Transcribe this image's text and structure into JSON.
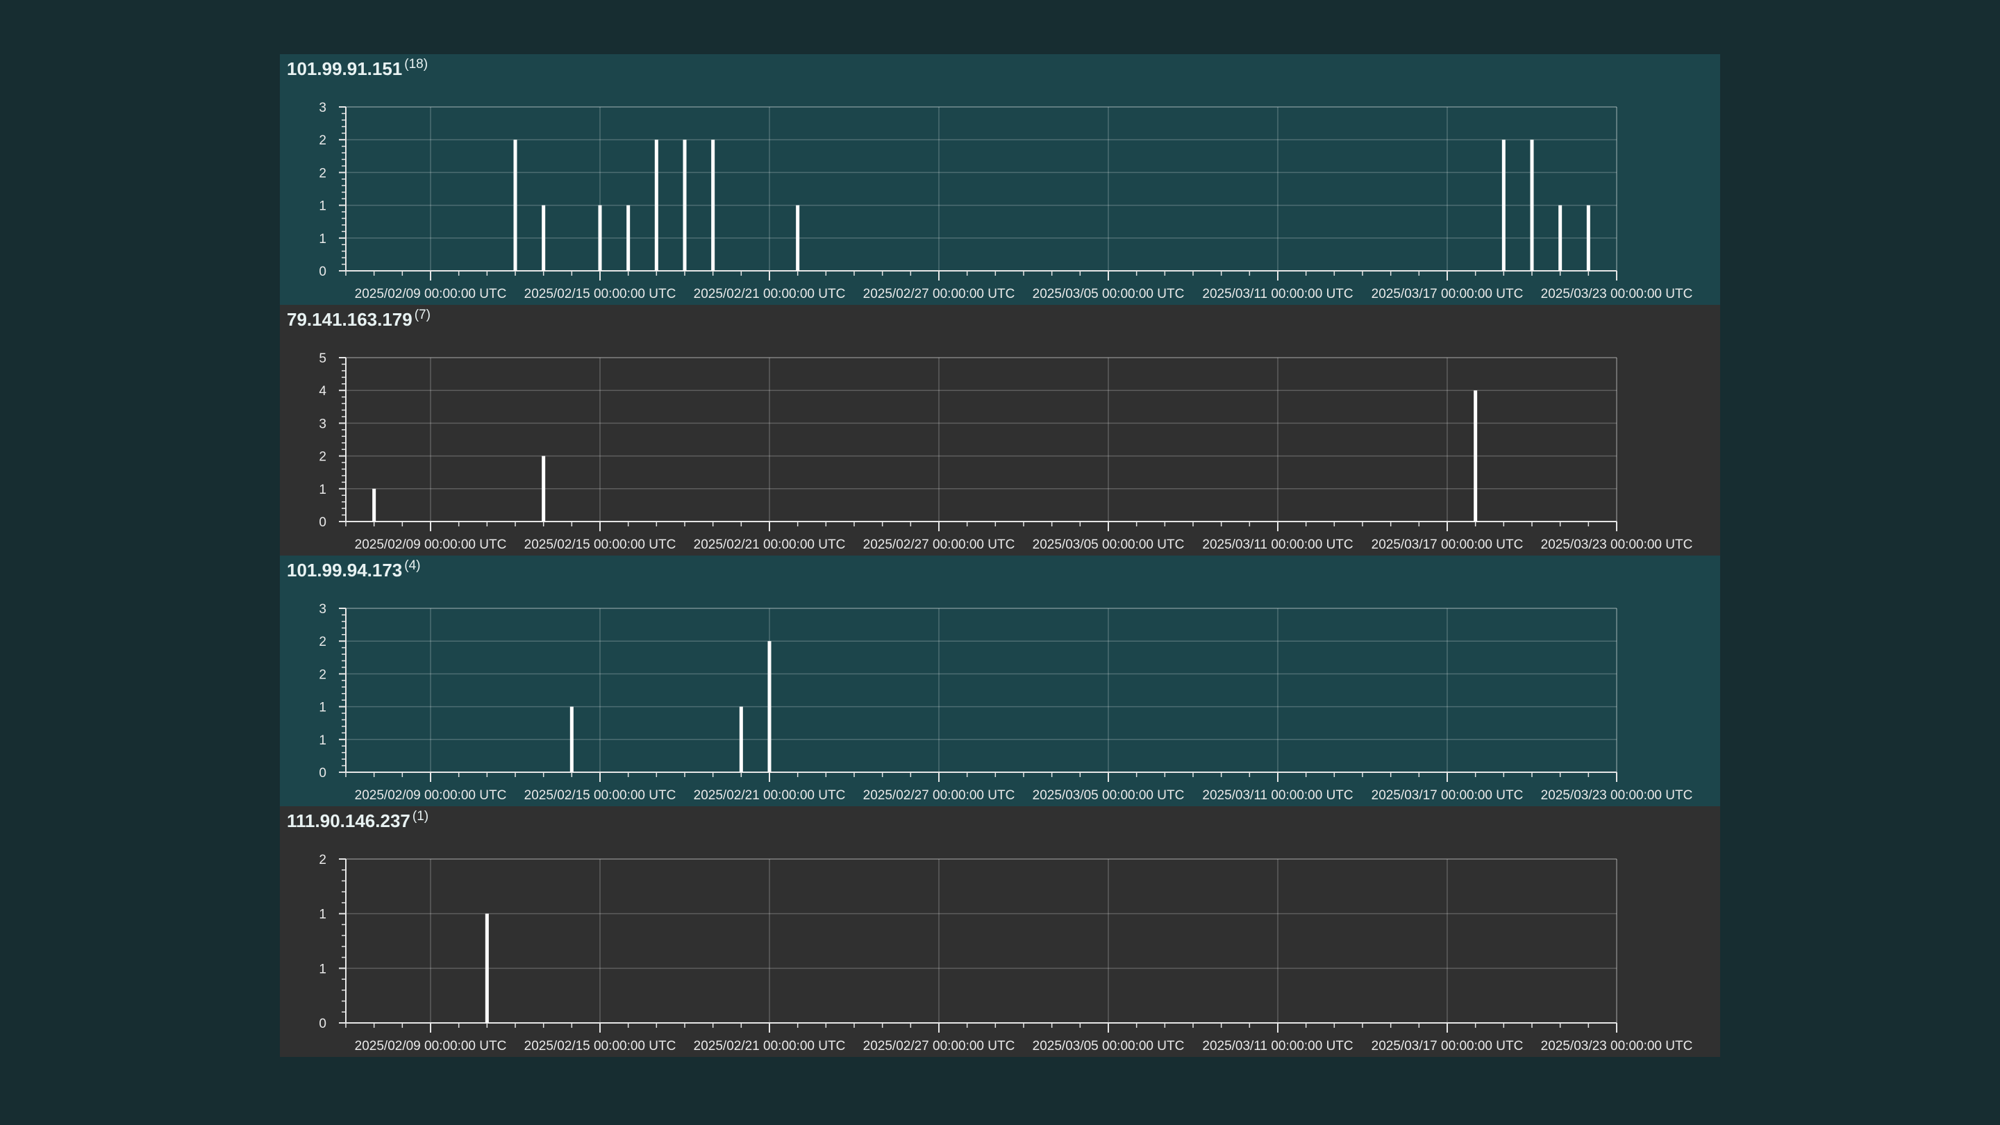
{
  "x_tick_labels": [
    "2025/02/09 00:00:00 UTC",
    "2025/02/15 00:00:00 UTC",
    "2025/02/21 00:00:00 UTC",
    "2025/02/27 00:00:00 UTC",
    "2025/03/05 00:00:00 UTC",
    "2025/03/11 00:00:00 UTC",
    "2025/03/17 00:00:00 UTC",
    "2025/03/23 00:00:00 UTC"
  ],
  "colors": {
    "teal_panel": "#1c454b",
    "dark_panel": "#303030",
    "page": "#172d31",
    "bar": "#ffffff"
  },
  "chart_data": [
    {
      "type": "bar",
      "title": "101.99.91.151",
      "count": "(18)",
      "theme": "teal",
      "xlim": [
        "2025-02-06",
        "2025-03-23"
      ],
      "ylim": [
        0,
        2.5
      ],
      "y_tick_labels": [
        "0",
        "1",
        "1",
        "2",
        "2",
        "3"
      ],
      "x": [
        "2025-02-12",
        "2025-02-13",
        "2025-02-15",
        "2025-02-16",
        "2025-02-17",
        "2025-02-18",
        "2025-02-19",
        "2025-02-22",
        "2025-03-19",
        "2025-03-20",
        "2025-03-21",
        "2025-03-22"
      ],
      "values": [
        2,
        1,
        1,
        1,
        2,
        2,
        2,
        1,
        2,
        2,
        1,
        1
      ]
    },
    {
      "type": "bar",
      "title": "79.141.163.179",
      "count": "(7)",
      "theme": "dark",
      "xlim": [
        "2025-02-06",
        "2025-03-23"
      ],
      "ylim": [
        0,
        5
      ],
      "y_tick_labels": [
        "0",
        "1",
        "2",
        "3",
        "4",
        "5"
      ],
      "x": [
        "2025-02-07",
        "2025-02-13",
        "2025-03-18"
      ],
      "values": [
        1,
        2,
        4
      ]
    },
    {
      "type": "bar",
      "title": "101.99.94.173",
      "count": "(4)",
      "theme": "teal",
      "xlim": [
        "2025-02-06",
        "2025-03-23"
      ],
      "ylim": [
        0,
        2.5
      ],
      "y_tick_labels": [
        "0",
        "1",
        "1",
        "2",
        "2",
        "3"
      ],
      "x": [
        "2025-02-14",
        "2025-02-20",
        "2025-02-21"
      ],
      "values": [
        1,
        1,
        2
      ]
    },
    {
      "type": "bar",
      "title": "111.90.146.237",
      "count": "(1)",
      "theme": "dark",
      "xlim": [
        "2025-02-06",
        "2025-03-23"
      ],
      "ylim": [
        0,
        1.5
      ],
      "y_tick_labels": [
        "0",
        "1",
        "1",
        "2"
      ],
      "x": [
        "2025-02-11"
      ],
      "values": [
        1
      ]
    }
  ]
}
